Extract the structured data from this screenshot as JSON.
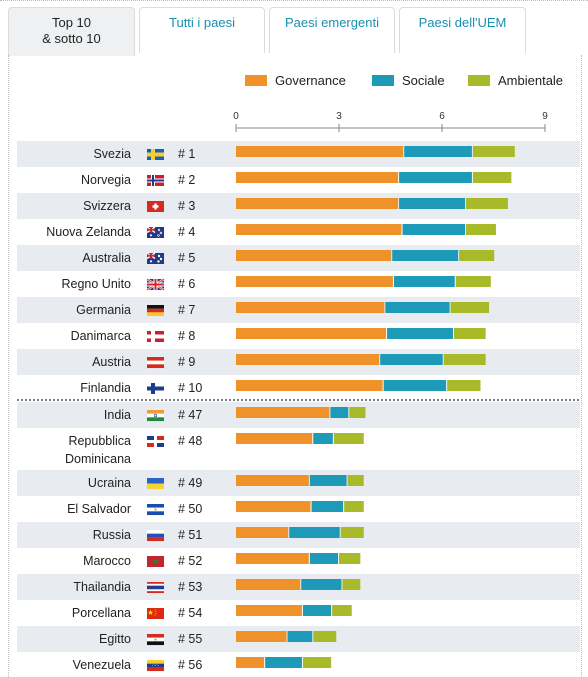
{
  "tabs": [
    {
      "label_line1": "Top 10",
      "label_line2": "& sotto 10",
      "active": true
    },
    {
      "label_line1": "Tutti i paesi",
      "label_line2": "",
      "active": false
    },
    {
      "label_line1": "Paesi emergenti",
      "label_line2": "",
      "active": false
    },
    {
      "label_line1": "Paesi dell'UEM",
      "label_line2": "",
      "active": false
    }
  ],
  "legend": [
    {
      "name": "Governance",
      "color": "#f0922a"
    },
    {
      "name": "Sociale",
      "color": "#1d9ab8"
    },
    {
      "name": "Ambientale",
      "color": "#a8b92a"
    }
  ],
  "chart_data": {
    "type": "bar",
    "orientation": "horizontal",
    "stacked": true,
    "xlim": [
      0,
      9
    ],
    "xticks": [
      "0",
      "3",
      "6",
      "9"
    ],
    "grid": false,
    "legend_position": "top",
    "series": [
      {
        "name": "Governance",
        "color": "#f0922a"
      },
      {
        "name": "Sociale",
        "color": "#1d9ab8"
      },
      {
        "name": "Ambientale",
        "color": "#a8b92a"
      }
    ],
    "rows": [
      {
        "country": [
          "Svezia"
        ],
        "rank": "# 1",
        "flag": "se",
        "values": [
          4.9,
          2.0,
          1.25
        ],
        "shaded": true
      },
      {
        "country": [
          "Norvegia"
        ],
        "rank": "# 2",
        "flag": "no",
        "values": [
          4.75,
          2.15,
          1.15
        ],
        "shaded": false
      },
      {
        "country": [
          "Svizzera"
        ],
        "rank": "# 3",
        "flag": "ch",
        "values": [
          4.75,
          1.95,
          1.25
        ],
        "shaded": true
      },
      {
        "country": [
          "Nuova Zelanda"
        ],
        "rank": "# 4",
        "flag": "nz",
        "values": [
          4.85,
          1.85,
          0.9
        ],
        "shaded": false
      },
      {
        "country": [
          "Australia"
        ],
        "rank": "# 5",
        "flag": "au",
        "values": [
          4.55,
          1.95,
          1.05
        ],
        "shaded": true
      },
      {
        "country": [
          "Regno Unito"
        ],
        "rank": "# 6",
        "flag": "uk",
        "values": [
          4.6,
          1.8,
          1.05
        ],
        "shaded": false
      },
      {
        "country": [
          "Germania"
        ],
        "rank": "# 7",
        "flag": "de",
        "values": [
          4.35,
          1.9,
          1.15
        ],
        "shaded": true
      },
      {
        "country": [
          "Danimarca"
        ],
        "rank": "# 8",
        "flag": "dk",
        "values": [
          4.4,
          1.95,
          0.95
        ],
        "shaded": false
      },
      {
        "country": [
          "Austria"
        ],
        "rank": "# 9",
        "flag": "at",
        "values": [
          4.2,
          1.85,
          1.25
        ],
        "shaded": true
      },
      {
        "country": [
          "Finlandia"
        ],
        "rank": "# 10",
        "flag": "fi",
        "values": [
          4.3,
          1.85,
          1.0
        ],
        "shaded": false
      },
      {
        "country": [
          "India"
        ],
        "rank": "# 47",
        "flag": "in",
        "values": [
          2.75,
          0.55,
          0.5
        ],
        "shaded": true
      },
      {
        "country": [
          "Repubblica",
          "Dominicana"
        ],
        "rank": "# 48",
        "flag": "do",
        "values": [
          2.25,
          0.6,
          0.9
        ],
        "shaded": false
      },
      {
        "country": [
          "Ucraina"
        ],
        "rank": "# 49",
        "flag": "ua",
        "values": [
          2.15,
          1.1,
          0.5
        ],
        "shaded": true
      },
      {
        "country": [
          "El Salvador"
        ],
        "rank": "# 50",
        "flag": "sv",
        "values": [
          2.2,
          0.95,
          0.6
        ],
        "shaded": false
      },
      {
        "country": [
          "Russia"
        ],
        "rank": "# 51",
        "flag": "ru",
        "values": [
          1.55,
          1.5,
          0.7
        ],
        "shaded": true
      },
      {
        "country": [
          "Marocco"
        ],
        "rank": "# 52",
        "flag": "ma",
        "values": [
          2.15,
          0.85,
          0.65
        ],
        "shaded": false
      },
      {
        "country": [
          "Thailandia"
        ],
        "rank": "# 53",
        "flag": "th",
        "values": [
          1.9,
          1.2,
          0.55
        ],
        "shaded": true
      },
      {
        "country": [
          "Porcellana"
        ],
        "rank": "# 54",
        "flag": "cn",
        "values": [
          1.95,
          0.85,
          0.6
        ],
        "shaded": false
      },
      {
        "country": [
          "Egitto"
        ],
        "rank": "# 55",
        "flag": "eg",
        "values": [
          1.5,
          0.75,
          0.7
        ],
        "shaded": true
      },
      {
        "country": [
          "Venezuela"
        ],
        "rank": "# 56",
        "flag": "ve",
        "values": [
          0.85,
          1.1,
          0.85
        ],
        "shaded": false
      }
    ]
  }
}
